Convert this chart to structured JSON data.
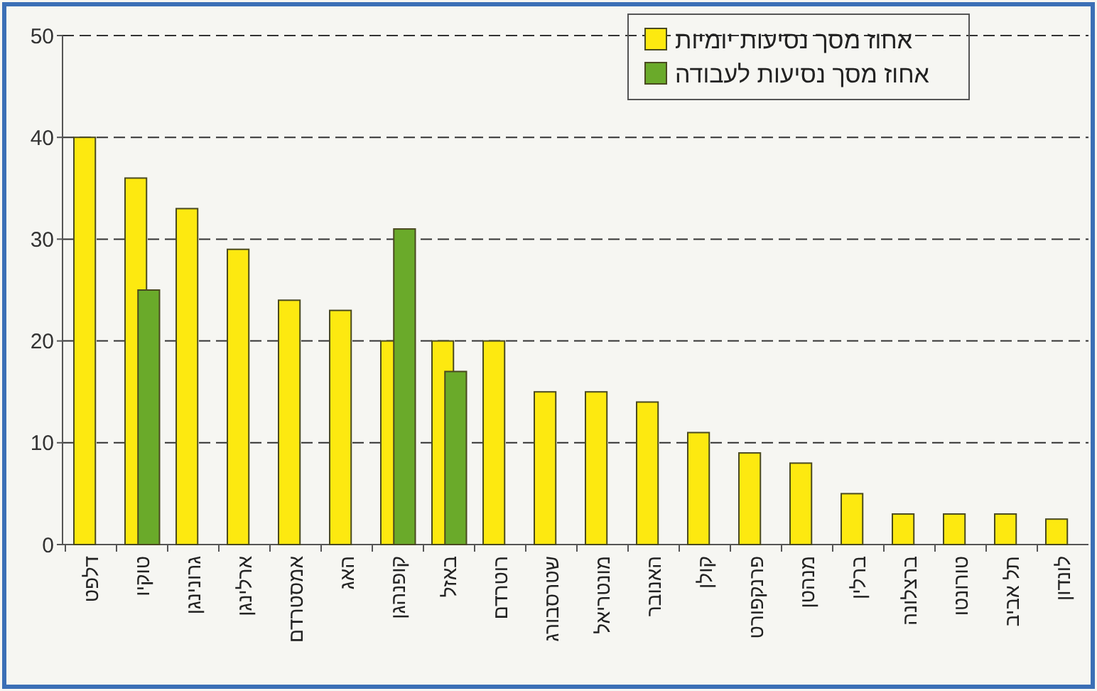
{
  "chart_data": {
    "type": "bar",
    "categories": [
      "דלפט",
      "טוקיו",
      "גרונינגן",
      "ארלינגן",
      "אמסטרדם",
      "האג",
      "קופנהגן",
      "באזל",
      "רוטרדם",
      "שטרסבורג",
      "מונטריאל",
      "האנובר",
      "קולן",
      "פרנקפורט",
      "מנהטן",
      "ברלין",
      "ברצלונה",
      "טורונטו",
      "תל אביב",
      "לונדון"
    ],
    "series": [
      {
        "name": "אחוז מסך נסיעות יומיות",
        "color": "#fde910",
        "values": [
          40,
          36,
          33,
          29,
          24,
          23,
          20,
          20,
          20,
          15,
          15,
          14,
          11,
          9,
          8,
          5,
          3,
          3,
          3,
          2.5
        ]
      },
      {
        "name": "אחוז מסך נסיעות לעבודה",
        "color": "#6aaa2a",
        "values": [
          null,
          25,
          null,
          null,
          null,
          null,
          31,
          17,
          null,
          null,
          null,
          null,
          null,
          null,
          null,
          null,
          null,
          null,
          null,
          null
        ]
      }
    ],
    "ylim": [
      0,
      50
    ],
    "yticks": [
      0,
      10,
      20,
      30,
      40,
      50
    ],
    "grid": "y",
    "legend": "top right"
  }
}
